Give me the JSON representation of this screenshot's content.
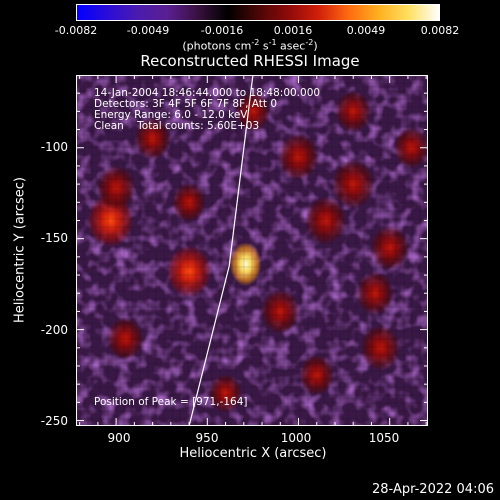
{
  "colorbar": {
    "colors": [
      "#0000ff",
      "#2a0cd8",
      "#4a1bb0",
      "#5a1f90",
      "#3a1040",
      "#000000",
      "#4a0606",
      "#8e0a0a",
      "#d01f0a",
      "#ff6a10",
      "#ffb020",
      "#ffe060",
      "#ffffff"
    ],
    "ticks": [
      "-0.0082",
      "-0.0049",
      "-0.0016",
      "0.0016",
      "0.0049",
      "0.0082"
    ],
    "units_prefix": "(photons cm",
    "units_exp1": "-2",
    "units_mid1": " s",
    "units_exp2": "-1",
    "units_mid2": " asec",
    "units_exp3": "-2",
    "units_suffix": ")"
  },
  "title": "Reconstructed RHESSI Image",
  "annotations": {
    "time": "14-Jan-2004 18:46:44.000 to 18:48:00.000",
    "detectors": "Detectors: 3F 4F 5F 6F 7F 8F, Att 0",
    "energy": "Energy Range: 6.0 - 12.0 keV",
    "clean": "Clean    Total counts: 5.60E+03",
    "peak": "Position of Peak = [971,-164]"
  },
  "axes": {
    "xlabel": "Heliocentric X (arcsec)",
    "ylabel": "Heliocentric Y (arcsec)",
    "xticks": [
      "900",
      "950",
      "1000",
      "1050"
    ],
    "yticks": [
      "-100",
      "-150",
      "-200",
      "-250"
    ]
  },
  "footer": "28-Apr-2022 04:06",
  "chart_data": {
    "type": "heatmap",
    "title": "Reconstructed RHESSI Image",
    "xlabel": "Heliocentric X (arcsec)",
    "ylabel": "Heliocentric Y (arcsec)",
    "xlim": [
      878,
      1071
    ],
    "ylim": [
      -253,
      -60
    ],
    "xticks": [
      900,
      950,
      1000,
      1050
    ],
    "yticks": [
      -100,
      -150,
      -200,
      -250
    ],
    "zlim": [
      -0.0082,
      0.0082
    ],
    "peak": {
      "x": 971,
      "y": -164,
      "value": 0.0082
    },
    "sources": [
      {
        "x": 971,
        "y": -164,
        "value": 0.0082
      },
      {
        "x": 940,
        "y": -168,
        "value": 0.004
      },
      {
        "x": 897,
        "y": -140,
        "value": 0.0042
      },
      {
        "x": 900,
        "y": -122,
        "value": 0.003
      },
      {
        "x": 920,
        "y": -95,
        "value": 0.0026
      },
      {
        "x": 1000,
        "y": -105,
        "value": 0.0033
      },
      {
        "x": 1015,
        "y": -140,
        "value": 0.0035
      },
      {
        "x": 1030,
        "y": -120,
        "value": 0.0036
      },
      {
        "x": 1050,
        "y": -155,
        "value": 0.003
      },
      {
        "x": 1042,
        "y": -180,
        "value": 0.0028
      },
      {
        "x": 1045,
        "y": -210,
        "value": 0.0031
      },
      {
        "x": 990,
        "y": -190,
        "value": 0.003
      },
      {
        "x": 905,
        "y": -205,
        "value": 0.0027
      },
      {
        "x": 960,
        "y": -235,
        "value": 0.0022
      },
      {
        "x": 1030,
        "y": -80,
        "value": 0.0026
      },
      {
        "x": 975,
        "y": -80,
        "value": 0.0024
      },
      {
        "x": 1010,
        "y": -225,
        "value": 0.0024
      },
      {
        "x": 940,
        "y": -130,
        "value": 0.0022
      },
      {
        "x": 1062,
        "y": -100,
        "value": 0.0025
      }
    ],
    "limb_line": [
      [
        940,
        -253
      ],
      [
        962,
        -165
      ],
      [
        975,
        -60
      ]
    ]
  }
}
